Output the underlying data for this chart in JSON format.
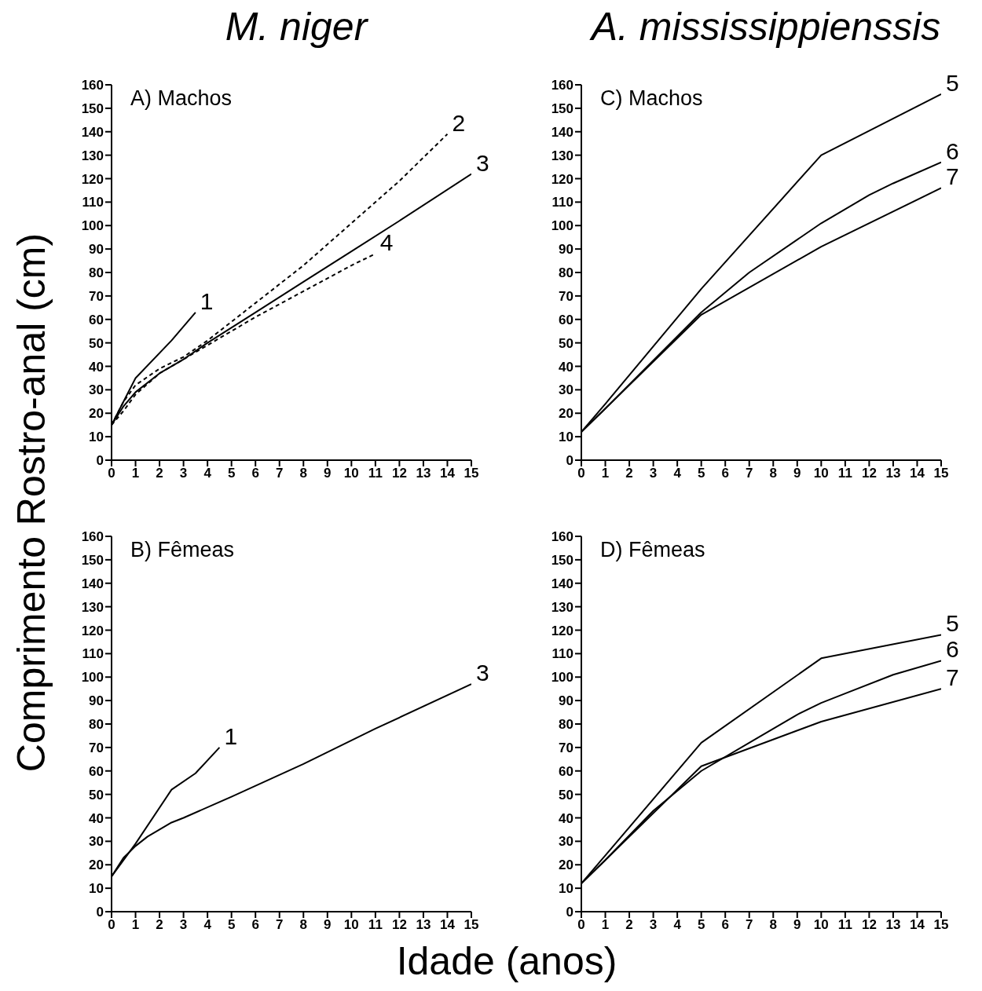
{
  "chart_data": [
    {
      "type": "line",
      "title": "M. niger",
      "subtitle": "A) Machos",
      "ylabel": "Comprimento Rostro-anal (cm)",
      "xlim": [
        0,
        15
      ],
      "xticks": [
        0,
        1,
        2,
        3,
        4,
        5,
        6,
        7,
        8,
        9,
        10,
        11,
        12,
        13,
        14,
        15
      ],
      "ylim": [
        0,
        160
      ],
      "yticks": [
        0,
        10,
        20,
        30,
        40,
        50,
        60,
        70,
        80,
        90,
        100,
        110,
        120,
        130,
        140,
        150,
        160
      ],
      "grid": false,
      "series": [
        {
          "name": "1",
          "color": "#000000",
          "line_style": "solid",
          "x": [
            0,
            1,
            2.5,
            3.5
          ],
          "values": [
            15,
            35,
            51,
            63
          ]
        },
        {
          "name": "2",
          "color": "#000000",
          "line_style": "dashed",
          "x": [
            0,
            0.5,
            1,
            2,
            3,
            4,
            6,
            8,
            10,
            12,
            14
          ],
          "values": [
            15,
            25,
            32,
            39,
            44,
            51,
            67,
            83,
            101,
            119,
            139
          ]
        },
        {
          "name": "3",
          "color": "#000000",
          "line_style": "solid",
          "x": [
            0,
            0.5,
            1,
            2,
            3,
            4,
            6,
            8,
            10,
            12,
            15
          ],
          "values": [
            15,
            23,
            29,
            37,
            43,
            50,
            63,
            76,
            89,
            102,
            122
          ]
        },
        {
          "name": "4",
          "color": "#000000",
          "line_style": "dashed",
          "x": [
            0,
            0.5,
            1,
            2,
            3,
            4,
            6,
            8,
            10,
            11
          ],
          "values": [
            15,
            21,
            28,
            37,
            43,
            49,
            61,
            72,
            83,
            88
          ]
        }
      ]
    },
    {
      "type": "line",
      "subtitle": "B) Fêmeas",
      "xlabel": "Idade (anos)",
      "xlim": [
        0,
        15
      ],
      "xticks": [
        0,
        1,
        2,
        3,
        4,
        5,
        6,
        7,
        8,
        9,
        10,
        11,
        12,
        13,
        14,
        15
      ],
      "ylim": [
        0,
        160
      ],
      "yticks": [
        0,
        10,
        20,
        30,
        40,
        50,
        60,
        70,
        80,
        90,
        100,
        110,
        120,
        130,
        140,
        150,
        160
      ],
      "grid": false,
      "series": [
        {
          "name": "1",
          "color": "#000000",
          "line_style": "solid",
          "x": [
            0,
            1,
            2.5,
            3.5,
            4.5
          ],
          "values": [
            15,
            29,
            52,
            59,
            70
          ]
        },
        {
          "name": "3",
          "color": "#000000",
          "line_style": "solid",
          "x": [
            0,
            0.5,
            1,
            1.5,
            2,
            2.5,
            3,
            5,
            8,
            11,
            15
          ],
          "values": [
            15,
            23,
            28,
            32,
            35,
            38,
            40,
            49,
            63,
            78,
            97
          ]
        }
      ]
    },
    {
      "type": "line",
      "title": "A. mississippienssis",
      "subtitle": "C) Machos",
      "xlim": [
        0,
        15
      ],
      "xticks": [
        0,
        1,
        2,
        3,
        4,
        5,
        6,
        7,
        8,
        9,
        10,
        11,
        12,
        13,
        14,
        15
      ],
      "ylim": [
        0,
        160
      ],
      "yticks": [
        0,
        10,
        20,
        30,
        40,
        50,
        60,
        70,
        80,
        90,
        100,
        110,
        120,
        130,
        140,
        150,
        160
      ],
      "grid": false,
      "series": [
        {
          "name": "5",
          "color": "#000000",
          "line_style": "solid",
          "x": [
            0,
            1,
            5,
            10,
            15
          ],
          "values": [
            12,
            24,
            73,
            130,
            156
          ]
        },
        {
          "name": "6",
          "color": "#000000",
          "line_style": "solid",
          "x": [
            0,
            1,
            5,
            7,
            10,
            12,
            13,
            15
          ],
          "values": [
            12,
            22,
            63,
            80,
            101,
            113,
            118,
            127
          ]
        },
        {
          "name": "7",
          "color": "#000000",
          "line_style": "solid",
          "x": [
            0,
            1,
            5,
            10,
            15
          ],
          "values": [
            12,
            22,
            62,
            91,
            116
          ]
        }
      ]
    },
    {
      "type": "line",
      "subtitle": "D) Fêmeas",
      "xlim": [
        0,
        15
      ],
      "xticks": [
        0,
        1,
        2,
        3,
        4,
        5,
        6,
        7,
        8,
        9,
        10,
        11,
        12,
        13,
        14,
        15
      ],
      "ylim": [
        0,
        160
      ],
      "yticks": [
        0,
        10,
        20,
        30,
        40,
        50,
        60,
        70,
        80,
        90,
        100,
        110,
        120,
        130,
        140,
        150,
        160
      ],
      "grid": false,
      "series": [
        {
          "name": "5",
          "color": "#000000",
          "line_style": "solid",
          "x": [
            0,
            1,
            5,
            10,
            15
          ],
          "values": [
            12,
            24,
            72,
            108,
            118
          ]
        },
        {
          "name": "6",
          "color": "#000000",
          "line_style": "solid",
          "x": [
            0,
            1,
            3,
            5,
            7,
            9,
            10,
            11,
            13,
            15
          ],
          "values": [
            12,
            22,
            43,
            60,
            72,
            84,
            89,
            93,
            101,
            107
          ]
        },
        {
          "name": "7",
          "color": "#000000",
          "line_style": "solid",
          "x": [
            0,
            1,
            5,
            10,
            15
          ],
          "values": [
            12,
            22,
            62,
            81,
            95
          ]
        }
      ]
    }
  ]
}
